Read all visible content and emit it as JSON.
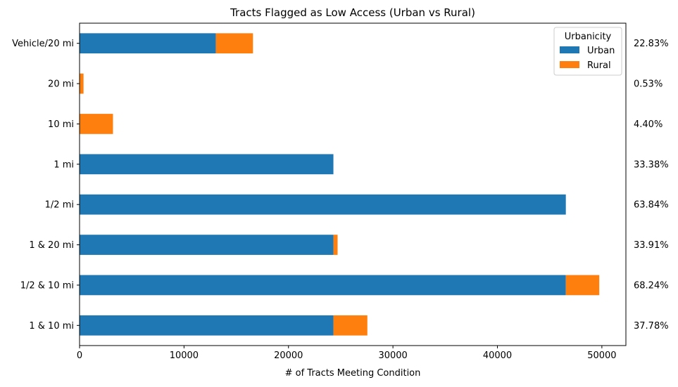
{
  "chart_data": {
    "type": "bar",
    "orientation": "horizontal",
    "stacked": true,
    "title": "Tracts Flagged as Low Access (Urban vs Rural)",
    "xlabel": "# of Tracts Meeting Condition",
    "ylabel": "",
    "xlim": [
      0,
      52300
    ],
    "x_ticks": [
      0,
      10000,
      20000,
      30000,
      40000,
      50000
    ],
    "x_tick_labels": [
      "0",
      "10000",
      "20000",
      "30000",
      "40000",
      "50000"
    ],
    "categories": [
      "Vehicle/20 mi",
      "20 mi",
      "10 mi",
      "1 mi",
      "1/2 mi",
      "1 & 20 mi",
      "1/2 & 10 mi",
      "1 & 10 mi"
    ],
    "series": [
      {
        "name": "Urban",
        "color": "#1f77b4",
        "values": [
          13050,
          0,
          0,
          24300,
          46550,
          24300,
          46550,
          24300
        ]
      },
      {
        "name": "Rural",
        "color": "#ff7f0e",
        "values": [
          3550,
          380,
          3200,
          0,
          0,
          400,
          3200,
          3250
        ]
      }
    ],
    "percent_labels": [
      "22.83%",
      "0.53%",
      "4.40%",
      "33.38%",
      "63.84%",
      "33.91%",
      "68.24%",
      "37.78%"
    ],
    "legend": {
      "title": "Urbanicity",
      "placement": "top-right"
    },
    "grid": false
  }
}
